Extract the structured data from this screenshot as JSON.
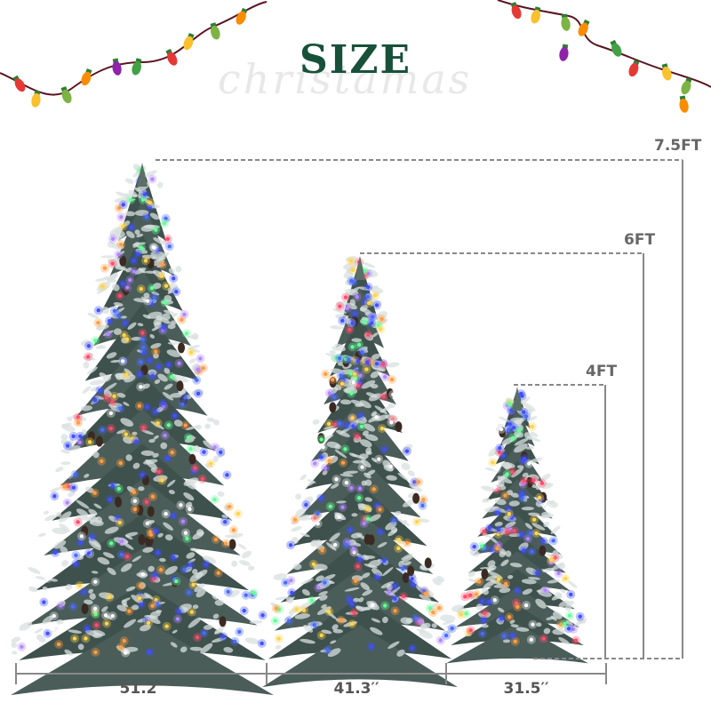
{
  "title": "SIZE",
  "watermark": "christamas",
  "trees": [
    {
      "name": "large-tree",
      "height_label": "7.5FT",
      "width_label": "51.2′′"
    },
    {
      "name": "medium-tree",
      "height_label": "6FT",
      "width_label": "41.3′′"
    },
    {
      "name": "small-tree",
      "height_label": "4FT",
      "width_label": "31.5′′"
    }
  ],
  "colors": {
    "title": "#18513a",
    "dimension_lines": "#888888",
    "branch_dark": "#4a5d58",
    "frost": "#d8e0df"
  },
  "icons": [
    "christmas-lights-left",
    "christmas-lights-right"
  ]
}
